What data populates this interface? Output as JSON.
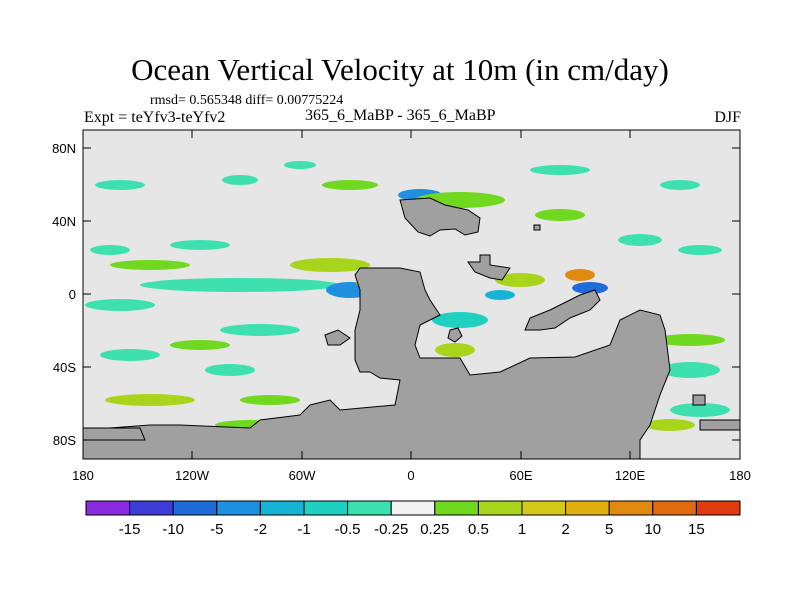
{
  "title": "Ocean Vertical Velocity at 10m (in cm/day)",
  "stats": "rmsd= 0.565348 diff= 0.00775224",
  "expt": "Expt = teYfv3-teYfv2",
  "center_label": "365_6_MaBP - 365_6_MaBP",
  "season": "DJF",
  "axes": {
    "lat_ticks": [
      {
        "label": "80N"
      },
      {
        "label": "40N"
      },
      {
        "label": "0"
      },
      {
        "label": "40S"
      },
      {
        "label": "80S"
      }
    ],
    "lon_ticks": [
      {
        "label": "180"
      },
      {
        "label": "120W"
      },
      {
        "label": "60W"
      },
      {
        "label": "0"
      },
      {
        "label": "60E"
      },
      {
        "label": "120E"
      },
      {
        "label": "180"
      }
    ]
  },
  "colorbar": {
    "colors": [
      "#8a2be2",
      "#3d3dd6",
      "#1e6bd9",
      "#1f8fe0",
      "#17b3d4",
      "#1fd0c0",
      "#3fe0b0",
      "#f2f2f2",
      "#6fd81f",
      "#a8d41c",
      "#d4c81a",
      "#e0b010",
      "#e08a10",
      "#e06a10",
      "#e03a10"
    ],
    "labels": [
      "-15",
      "-10",
      "-5",
      "-2",
      "-1",
      "-0.5",
      "-0.25",
      "0.25",
      "0.5",
      "1",
      "2",
      "5",
      "10",
      "15"
    ]
  },
  "map_colors": {
    "background": "#e6e6e6",
    "land": "#a0a0a0",
    "frame": "#000000"
  }
}
